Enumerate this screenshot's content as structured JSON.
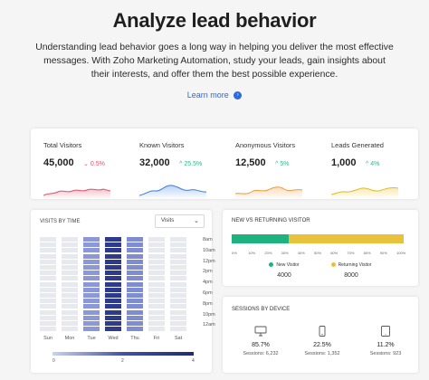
{
  "hero": {
    "title": "Analyze lead behavior",
    "description": "Understanding lead behavior goes a long way in helping you deliver the most effective messages. With Zoho Marketing Automation, study your leads, gain insights about their interests, and offer them the best possible experience.",
    "learn_more": "Learn more"
  },
  "stats": [
    {
      "label": "Total Visitors",
      "value": "45,000",
      "change": "0.5%",
      "direction": "down",
      "color": "#e0526d"
    },
    {
      "label": "Known Visitors",
      "value": "32,000",
      "change": "25.5%",
      "direction": "up",
      "color": "#3b7fe0"
    },
    {
      "label": "Anonymous Visitors",
      "value": "12,500",
      "change": "5%",
      "direction": "up",
      "color": "#f09a3a"
    },
    {
      "label": "Leads Generated",
      "value": "1,000",
      "change": "4%",
      "direction": "up",
      "color": "#f0c93a"
    }
  ],
  "visits_by_time": {
    "title": "VISITS BY TIME",
    "select_value": "Visits",
    "times": [
      "8am",
      "10am",
      "12pm",
      "2pm",
      "4pm",
      "6pm",
      "8pm",
      "10pm",
      "12am"
    ],
    "days": [
      "Sun",
      "Mon",
      "Tue",
      "Wed",
      "Thu",
      "Fri",
      "Sat"
    ],
    "legend_min": "0",
    "legend_max": "4",
    "legend_mid": "2"
  },
  "new_vs_returning": {
    "title": "NEW VS RETURNING VISITOR",
    "ticks": [
      "0%",
      "10%",
      "20%",
      "30%",
      "40%",
      "50%",
      "60%",
      "70%",
      "80%",
      "90%",
      "100%"
    ],
    "new": {
      "label": "New Visitor",
      "value": "4000",
      "share": 0.333,
      "color": "#1db37e"
    },
    "returning": {
      "label": "Returning Visitor",
      "value": "8000",
      "share": 0.667,
      "color": "#e7c23a"
    }
  },
  "sessions_by_device": {
    "title": "SESSIONS BY DEVICE",
    "devices": [
      {
        "icon": "desktop-icon",
        "percent": "85.7%",
        "sessions": "Sessions: 6,232"
      },
      {
        "icon": "mobile-icon",
        "percent": "22.5%",
        "sessions": "Sessions: 1,352"
      },
      {
        "icon": "tablet-icon",
        "percent": "11.2%",
        "sessions": "Sessions: 923"
      }
    ]
  }
}
